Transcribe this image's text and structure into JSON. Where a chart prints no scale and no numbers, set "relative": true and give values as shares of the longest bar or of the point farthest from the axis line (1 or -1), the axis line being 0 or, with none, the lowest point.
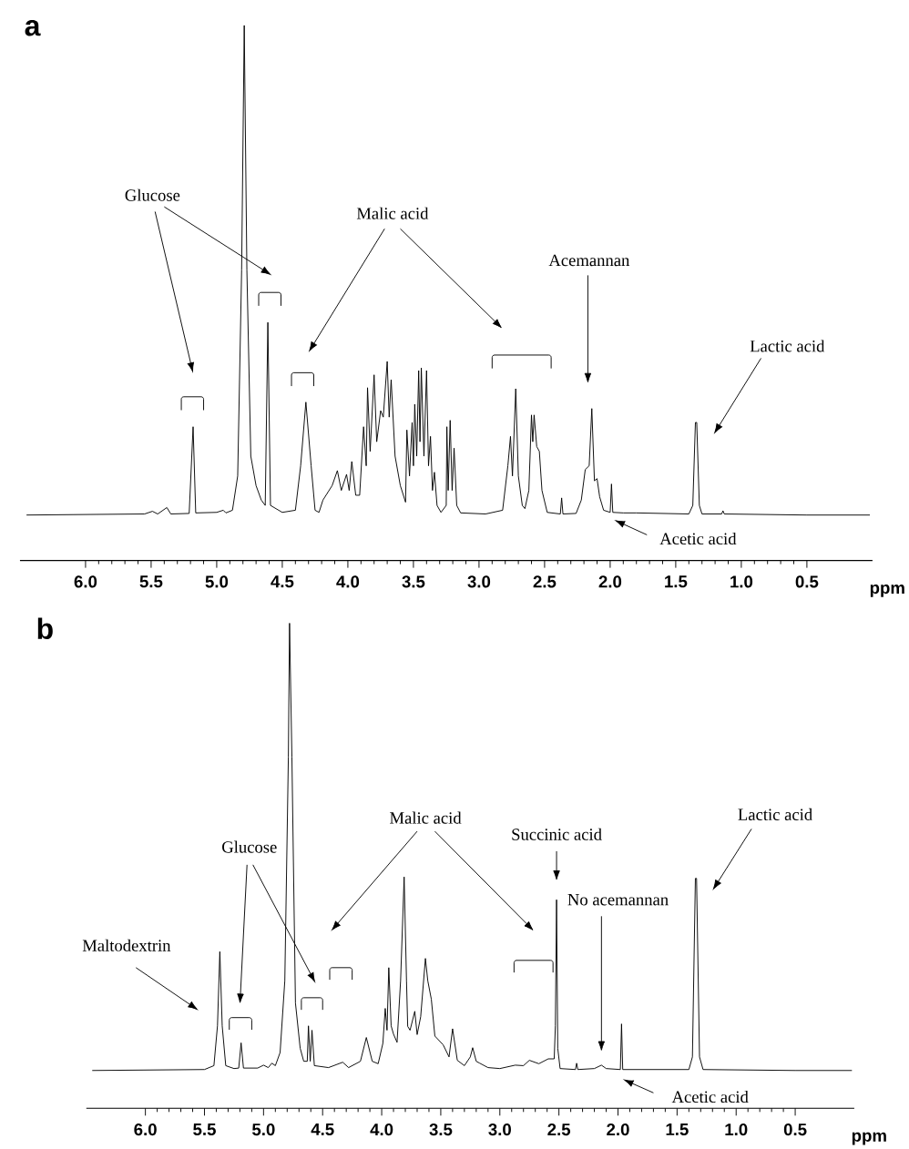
{
  "chart_data": [
    {
      "type": "line",
      "relative": true,
      "title": "a",
      "xlabel": "ppm",
      "xlim": [
        6.5,
        0.0
      ],
      "xticks": [
        {
          "value": 6.0,
          "label": "6.0"
        },
        {
          "value": 5.5,
          "label": "5.5"
        },
        {
          "value": 5.0,
          "label": "5.0"
        },
        {
          "value": 4.5,
          "label": "4.5"
        },
        {
          "value": 4.0,
          "label": "4.0"
        },
        {
          "value": 3.5,
          "label": "3.5"
        },
        {
          "value": 3.0,
          "label": "3.0"
        },
        {
          "value": 2.5,
          "label": "2.5"
        },
        {
          "value": 2.0,
          "label": "2.0"
        },
        {
          "value": 1.5,
          "label": "1.5"
        },
        {
          "value": 1.0,
          "label": "1.0"
        },
        {
          "value": 0.5,
          "label": "0.5"
        }
      ],
      "series": [
        {
          "color": "#000000",
          "x": [
            6.45,
            5.55,
            5.49,
            5.45,
            5.38,
            5.35,
            5.21,
            5.18,
            5.16,
            5.0,
            4.95,
            4.93,
            4.88,
            4.84,
            4.81,
            4.79,
            4.77,
            4.74,
            4.7,
            4.66,
            4.63,
            4.61,
            4.59,
            4.5,
            4.4,
            4.36,
            4.32,
            4.28,
            4.25,
            4.22,
            4.19,
            4.12,
            4.08,
            4.05,
            4.01,
            3.99,
            3.97,
            3.94,
            3.91,
            3.88,
            3.86,
            3.85,
            3.83,
            3.8,
            3.78,
            3.75,
            3.73,
            3.7,
            3.685,
            3.67,
            3.64,
            3.6,
            3.56,
            3.55,
            3.53,
            3.51,
            3.5,
            3.49,
            3.475,
            3.46,
            3.45,
            3.44,
            3.42,
            3.4,
            3.385,
            3.37,
            3.355,
            3.34,
            3.32,
            3.29,
            3.25,
            3.245,
            3.235,
            3.22,
            3.205,
            3.19,
            3.17,
            3.14,
            2.95,
            2.82,
            2.78,
            2.76,
            2.745,
            2.72,
            2.7,
            2.67,
            2.65,
            2.62,
            2.6,
            2.59,
            2.58,
            2.56,
            2.54,
            2.52,
            2.48,
            2.38,
            2.37,
            2.36,
            2.26,
            2.22,
            2.19,
            2.16,
            2.14,
            2.12,
            2.1,
            2.08,
            2.05,
            2.0,
            1.99,
            1.98,
            1.9,
            1.8,
            1.4,
            1.37,
            1.35,
            1.34,
            1.32,
            1.3,
            1.15,
            1.14,
            1.13,
            0.5,
            0.02
          ],
          "values": [
            0.085,
            0.087,
            0.092,
            0.087,
            0.099,
            0.087,
            0.088,
            0.25,
            0.089,
            0.09,
            0.094,
            0.089,
            0.094,
            0.158,
            0.543,
            1.0,
            0.543,
            0.195,
            0.14,
            0.113,
            0.103,
            0.445,
            0.103,
            0.09,
            0.094,
            0.177,
            0.296,
            0.177,
            0.094,
            0.09,
            0.113,
            0.14,
            0.168,
            0.131,
            0.161,
            0.131,
            0.185,
            0.122,
            0.122,
            0.25,
            0.177,
            0.323,
            0.204,
            0.347,
            0.222,
            0.28,
            0.268,
            0.372,
            0.268,
            0.338,
            0.195,
            0.14,
            0.109,
            0.244,
            0.158,
            0.258,
            0.177,
            0.292,
            0.195,
            0.355,
            0.222,
            0.36,
            0.195,
            0.355,
            0.177,
            0.232,
            0.131,
            0.165,
            0.103,
            0.09,
            0.103,
            0.25,
            0.131,
            0.262,
            0.131,
            0.21,
            0.103,
            0.089,
            0.087,
            0.094,
            0.177,
            0.232,
            0.158,
            0.321,
            0.158,
            0.103,
            0.097,
            0.131,
            0.272,
            0.222,
            0.272,
            0.213,
            0.204,
            0.131,
            0.09,
            0.087,
            0.117,
            0.087,
            0.088,
            0.113,
            0.17,
            0.177,
            0.284,
            0.149,
            0.153,
            0.119,
            0.094,
            0.09,
            0.143,
            0.09,
            0.089,
            0.089,
            0.087,
            0.103,
            0.258,
            0.258,
            0.103,
            0.087,
            0.087,
            0.093,
            0.087,
            0.085,
            0.085
          ]
        }
      ],
      "annotations": [
        "Glucose",
        "Malic acid",
        "Acemannan",
        "Lactic acid",
        "Acetic acid"
      ]
    },
    {
      "type": "line",
      "relative": true,
      "title": "b",
      "xlabel": "ppm",
      "xlim": [
        6.5,
        0.0
      ],
      "xticks": [
        {
          "value": 6.0,
          "label": "6.0"
        },
        {
          "value": 5.5,
          "label": "5.5"
        },
        {
          "value": 5.0,
          "label": "5.0"
        },
        {
          "value": 4.5,
          "label": "4.5"
        },
        {
          "value": 4.0,
          "label": "4.0"
        },
        {
          "value": 3.5,
          "label": "3.5"
        },
        {
          "value": 3.0,
          "label": "3.0"
        },
        {
          "value": 2.5,
          "label": "2.5"
        },
        {
          "value": 2.0,
          "label": "2.0"
        },
        {
          "value": 1.5,
          "label": "1.5"
        },
        {
          "value": 1.0,
          "label": "1.0"
        },
        {
          "value": 0.5,
          "label": "0.5"
        }
      ],
      "series": [
        {
          "color": "#000000",
          "x": [
            6.45,
            5.5,
            5.42,
            5.39,
            5.37,
            5.35,
            5.32,
            5.25,
            5.21,
            5.19,
            5.17,
            5.05,
            5.0,
            4.96,
            4.93,
            4.9,
            4.86,
            4.82,
            4.79,
            4.78,
            4.76,
            4.73,
            4.69,
            4.66,
            4.63,
            4.62,
            4.605,
            4.59,
            4.57,
            4.45,
            4.33,
            4.28,
            4.18,
            4.13,
            4.08,
            4.03,
            3.99,
            3.97,
            3.955,
            3.94,
            3.92,
            3.9,
            3.87,
            3.84,
            3.81,
            3.79,
            3.78,
            3.76,
            3.72,
            3.7,
            3.67,
            3.63,
            3.61,
            3.58,
            3.55,
            3.48,
            3.43,
            3.4,
            3.36,
            3.3,
            3.25,
            3.23,
            3.2,
            3.17,
            3.1,
            3.0,
            2.87,
            2.8,
            2.75,
            2.67,
            2.59,
            2.54,
            2.53,
            2.52,
            2.51,
            2.49,
            2.36,
            2.35,
            2.34,
            2.2,
            2.14,
            2.1,
            1.98,
            1.97,
            1.96,
            1.4,
            1.37,
            1.345,
            1.335,
            1.31,
            1.28,
            0.5,
            0.02
          ],
          "values": [
            0.078,
            0.08,
            0.088,
            0.17,
            0.323,
            0.17,
            0.088,
            0.082,
            0.083,
            0.135,
            0.083,
            0.083,
            0.089,
            0.084,
            0.093,
            0.088,
            0.115,
            0.263,
            0.724,
            1.0,
            0.724,
            0.217,
            0.124,
            0.097,
            0.097,
            0.17,
            0.097,
            0.161,
            0.088,
            0.084,
            0.095,
            0.084,
            0.097,
            0.146,
            0.097,
            0.092,
            0.134,
            0.206,
            0.161,
            0.29,
            0.17,
            0.153,
            0.136,
            0.263,
            0.477,
            0.263,
            0.169,
            0.161,
            0.2,
            0.152,
            0.189,
            0.309,
            0.263,
            0.225,
            0.149,
            0.131,
            0.106,
            0.164,
            0.099,
            0.088,
            0.106,
            0.125,
            0.097,
            0.093,
            0.084,
            0.082,
            0.089,
            0.088,
            0.099,
            0.092,
            0.102,
            0.102,
            0.17,
            0.43,
            0.124,
            0.082,
            0.08,
            0.093,
            0.08,
            0.082,
            0.089,
            0.082,
            0.08,
            0.174,
            0.08,
            0.08,
            0.106,
            0.474,
            0.474,
            0.106,
            0.08,
            0.078,
            0.078
          ]
        }
      ],
      "annotations": [
        "Maltodextrin",
        "Glucose",
        "Malic acid",
        "Succinic acid",
        "No acemannan",
        "Lactic acid",
        "Acetic acid"
      ]
    }
  ]
}
